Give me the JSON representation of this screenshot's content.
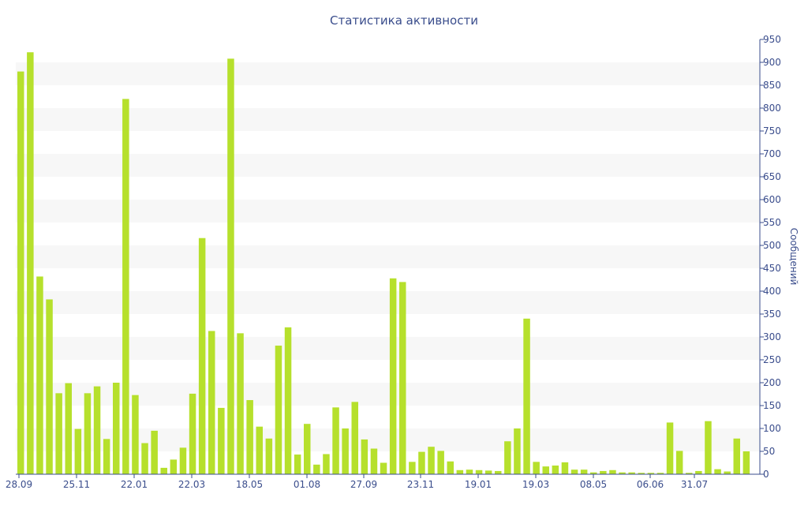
{
  "chart_data": {
    "type": "bar",
    "title": "Статистика активности",
    "ylabel": "Сообщений",
    "ylim": [
      0,
      950
    ],
    "yticks": [
      0,
      50,
      100,
      150,
      200,
      250,
      300,
      350,
      400,
      450,
      500,
      550,
      600,
      650,
      700,
      750,
      800,
      850,
      900,
      950
    ],
    "xtick_labels": [
      "28.09",
      "25.11",
      "22.01",
      "22.03",
      "18.05",
      "01.08",
      "27.09",
      "23.11",
      "19.01",
      "19.03",
      "08.05",
      "06.06",
      "31.07"
    ],
    "grid": "alternating horizontal bands",
    "bar_color": "#b6e02c",
    "band_color": "#f7f7f7",
    "text_color": "#3a4d8c",
    "values": [
      880,
      922,
      432,
      382,
      177,
      199,
      99,
      177,
      192,
      77,
      200,
      820,
      173,
      68,
      95,
      14,
      32,
      58,
      176,
      516,
      313,
      145,
      908,
      308,
      162,
      104,
      78,
      281,
      321,
      43,
      110,
      21,
      44,
      146,
      100,
      158,
      76,
      56,
      25,
      428,
      420,
      27,
      49,
      60,
      51,
      28,
      9,
      10,
      9,
      8,
      7,
      72,
      100,
      340,
      27,
      17,
      19,
      26,
      10,
      10,
      4,
      7,
      9,
      4,
      4,
      3,
      3,
      3,
      113,
      51,
      3,
      7,
      116,
      11,
      6,
      78,
      50
    ]
  }
}
